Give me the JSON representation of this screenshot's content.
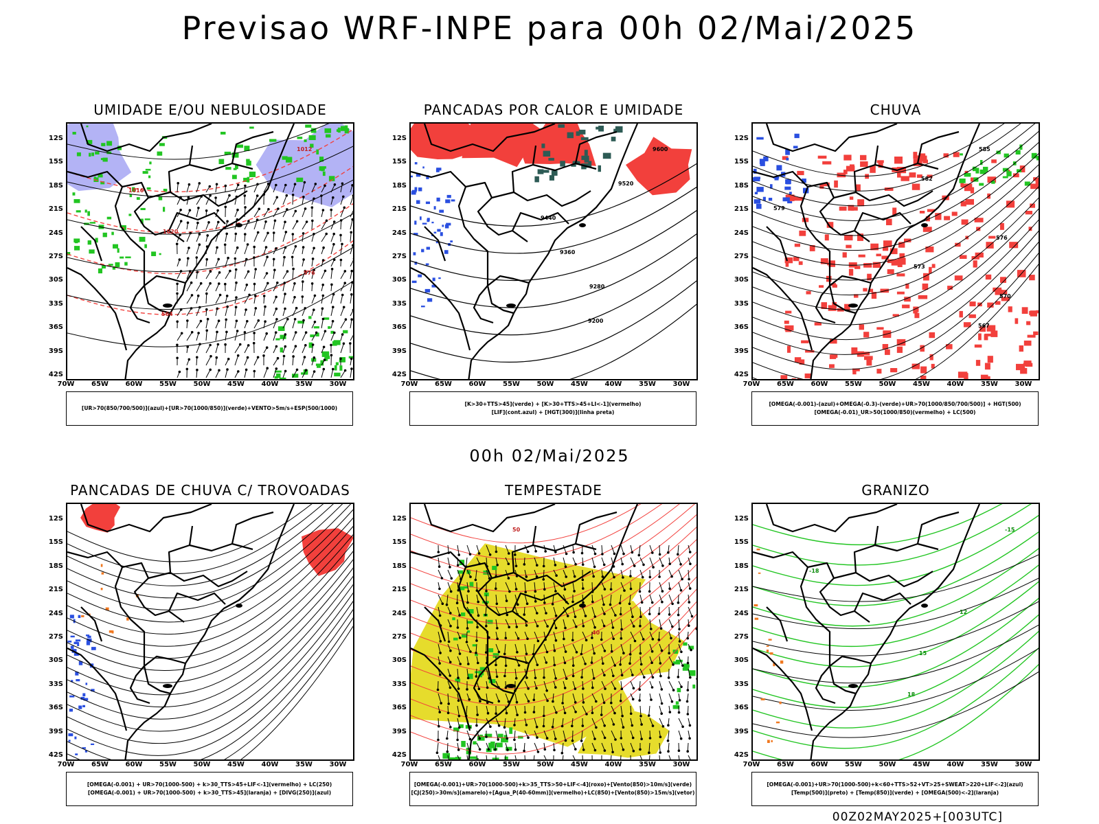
{
  "header": {
    "title": "Previsao WRF-INPE  para 00h 02/Mai/2025",
    "mid_time": "00h 02/Mai/2025",
    "footer": "00Z02MAY2025+[003UTC]"
  },
  "axes": {
    "lat_labels": [
      "12S",
      "15S",
      "18S",
      "21S",
      "24S",
      "27S",
      "30S",
      "33S",
      "36S",
      "39S",
      "42S"
    ],
    "lon_labels": [
      "70W",
      "65W",
      "60W",
      "55W",
      "50W",
      "45W",
      "40W",
      "35W",
      "30W"
    ]
  },
  "colors": {
    "red": "#f2403c",
    "blue": "#2a4fe0",
    "green": "#22c522",
    "lavender": "#b3b3f5",
    "yellow": "#e6dc2c",
    "dark_teal": "#2d5b55",
    "orange": "#f07820"
  },
  "panels": [
    {
      "id": "umidade",
      "title": "UMIDADE E/OU NEBULOSIDADE",
      "legend": [
        "[UR>70(850/700/500)](azul)+[UR>70(1000/850)](verde)+VENTO>5m/s+ESP(500/1000)"
      ],
      "contour_labels": [
        "1012",
        "1016",
        "1020",
        "576",
        "564"
      ]
    },
    {
      "id": "pancadas",
      "title": "PANCADAS POR CALOR E UMIDADE",
      "legend": [
        "[K>30+TTS>45](verde) + [K>30+TTS>45+LI<-1](vermelho)",
        "[LIF](cont.azul) + [HGT(300)](linha preta)"
      ],
      "contour_labels": [
        "9600",
        "9520",
        "9440",
        "9360",
        "9280",
        "9200"
      ]
    },
    {
      "id": "chuva",
      "title": "CHUVA",
      "legend": [
        "[OMEGA(-0.001)-(azul)+OMEGA(-0.3)-(verde)+UR>70(1000/850/700/500)] + HGT(500)",
        "[OMEGA(-0.01)_UR>50(1000/850)(vermelho) + LC(500)"
      ],
      "contour_labels": [
        "585",
        "582",
        "579",
        "576",
        "573",
        "570",
        "567"
      ]
    },
    {
      "id": "trovoadas",
      "title": "PANCADAS DE CHUVA C/ TROVOADAS",
      "legend": [
        "[OMEGA(-0.001) + UR>70(1000-500) + k>30_TTS>45+LIF<-1](vermelho) + LC(250)",
        "[OMEGA(-0.001) + UR>70(1000-500) + k>30_TTS>45](laranja) + [DIVG(250)](azul)"
      ],
      "contour_labels": []
    },
    {
      "id": "tempestade",
      "title": "TEMPESTADE",
      "legend": [
        "[OMEGA(-0.001)+UR>70(1000-500)+k>35_TTS>50+LIF<-4](roxo)+[Vento(850)>10m/s](verde)",
        "[CJ(250)>30m/s](amarelo)+[Agua_P(40-60mm)](vermelho)+LC(850)+[Vento(850)>15m/s](vetor)"
      ],
      "contour_labels": [
        "50",
        "40"
      ]
    },
    {
      "id": "granizo",
      "title": "GRANIZO",
      "legend": [
        "[OMEGA(-0.001)+UR>70(1000-500)+k<60+TTS>52+VT>25+SWEAT>220+LIF<-2](azul)",
        "[Temp(500)](preto) + [Temp(850)](verde) + [OMEGA(500)<-2](laranja)"
      ],
      "contour_labels": [
        "-15",
        "-18",
        "12",
        "15",
        "18"
      ]
    }
  ]
}
